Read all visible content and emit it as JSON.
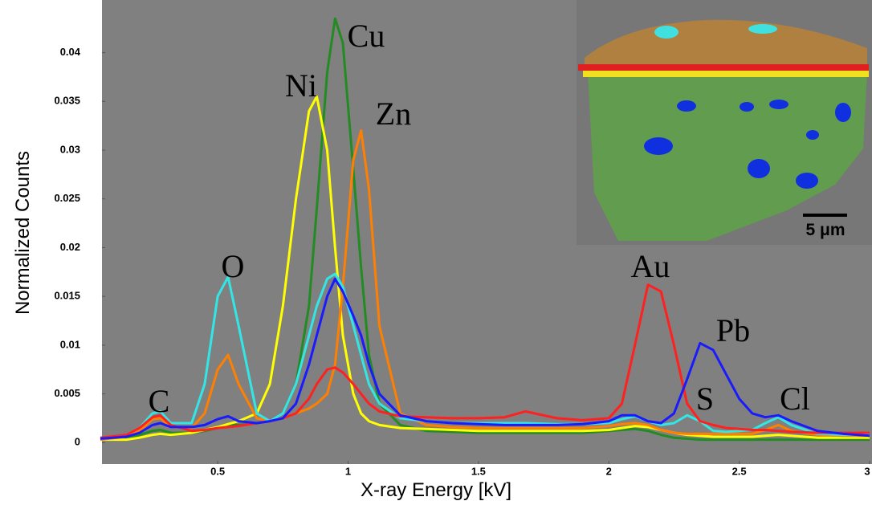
{
  "chart_data": {
    "type": "line",
    "xlabel": "X-ray Energy [kV]",
    "ylabel": "Normalized Counts",
    "x": [
      0.05,
      0.15,
      0.2,
      0.25,
      0.28,
      0.32,
      0.4,
      0.45,
      0.5,
      0.54,
      0.58,
      0.65,
      0.7,
      0.75,
      0.8,
      0.85,
      0.88,
      0.92,
      0.95,
      0.98,
      1.02,
      1.05,
      1.08,
      1.12,
      1.2,
      1.3,
      1.4,
      1.5,
      1.6,
      1.68,
      1.8,
      1.9,
      2.0,
      2.05,
      2.1,
      2.15,
      2.2,
      2.25,
      2.3,
      2.35,
      2.4,
      2.45,
      2.5,
      2.55,
      2.6,
      2.65,
      2.7,
      2.8,
      2.9,
      3.0
    ],
    "series": [
      {
        "color": "#228b22",
        "values": [
          0.0003,
          0.0005,
          0.0008,
          0.0012,
          0.0013,
          0.001,
          0.001,
          0.0012,
          0.0015,
          0.0018,
          0.0018,
          0.002,
          0.0022,
          0.003,
          0.006,
          0.014,
          0.024,
          0.038,
          0.0435,
          0.041,
          0.028,
          0.018,
          0.009,
          0.004,
          0.0018,
          0.0012,
          0.0011,
          0.001,
          0.001,
          0.001,
          0.001,
          0.001,
          0.0012,
          0.0013,
          0.0014,
          0.0012,
          0.0008,
          0.0005,
          0.0004,
          0.0003,
          0.0003,
          0.0003,
          0.0003,
          0.0003,
          0.0003,
          0.0003,
          0.0003,
          0.0003,
          0.0003,
          0.0003
        ]
      },
      {
        "color": "#ffff00",
        "values": [
          0.0003,
          0.0003,
          0.0005,
          0.0008,
          0.0009,
          0.0008,
          0.001,
          0.0013,
          0.0016,
          0.0019,
          0.0022,
          0.003,
          0.006,
          0.014,
          0.025,
          0.034,
          0.0355,
          0.03,
          0.02,
          0.011,
          0.005,
          0.003,
          0.0022,
          0.0018,
          0.0015,
          0.0014,
          0.0013,
          0.0012,
          0.0012,
          0.0012,
          0.0012,
          0.0012,
          0.0013,
          0.0015,
          0.0017,
          0.0016,
          0.0013,
          0.001,
          0.0008,
          0.0007,
          0.0006,
          0.0006,
          0.0006,
          0.0006,
          0.0007,
          0.0008,
          0.0007,
          0.0005,
          0.0005,
          0.0005
        ]
      },
      {
        "color": "#ff8000",
        "values": [
          0.0003,
          0.0006,
          0.0012,
          0.0024,
          0.0025,
          0.0016,
          0.0015,
          0.003,
          0.0075,
          0.009,
          0.006,
          0.0025,
          0.0022,
          0.0025,
          0.003,
          0.0035,
          0.004,
          0.005,
          0.008,
          0.016,
          0.029,
          0.032,
          0.026,
          0.012,
          0.003,
          0.0018,
          0.0016,
          0.0015,
          0.0015,
          0.0015,
          0.0015,
          0.0015,
          0.0017,
          0.0019,
          0.002,
          0.0018,
          0.0013,
          0.001,
          0.0009,
          0.0009,
          0.0009,
          0.0009,
          0.0009,
          0.0009,
          0.0013,
          0.0018,
          0.0012,
          0.0008,
          0.0007,
          0.0007
        ]
      },
      {
        "color": "#33e6e6",
        "values": [
          0.0004,
          0.0008,
          0.0015,
          0.003,
          0.0032,
          0.002,
          0.002,
          0.006,
          0.015,
          0.017,
          0.012,
          0.003,
          0.0022,
          0.003,
          0.006,
          0.011,
          0.014,
          0.0168,
          0.0173,
          0.016,
          0.012,
          0.009,
          0.006,
          0.004,
          0.0025,
          0.0022,
          0.002,
          0.002,
          0.002,
          0.002,
          0.0019,
          0.0019,
          0.002,
          0.0024,
          0.0027,
          0.0022,
          0.0018,
          0.002,
          0.0028,
          0.0022,
          0.0012,
          0.0011,
          0.0012,
          0.0013,
          0.002,
          0.0026,
          0.0018,
          0.0009,
          0.0008,
          0.0008
        ]
      },
      {
        "color": "#ff2020",
        "values": [
          0.0005,
          0.0008,
          0.0015,
          0.0026,
          0.0028,
          0.0018,
          0.0012,
          0.0013,
          0.0015,
          0.0016,
          0.0017,
          0.002,
          0.0022,
          0.0025,
          0.003,
          0.0045,
          0.006,
          0.0075,
          0.0077,
          0.0072,
          0.006,
          0.005,
          0.004,
          0.0032,
          0.0027,
          0.0026,
          0.0025,
          0.0025,
          0.0026,
          0.0032,
          0.0025,
          0.0023,
          0.0025,
          0.004,
          0.01,
          0.0162,
          0.0155,
          0.01,
          0.004,
          0.0022,
          0.0018,
          0.0015,
          0.0014,
          0.0013,
          0.0013,
          0.0012,
          0.0011,
          0.001,
          0.001,
          0.001
        ]
      },
      {
        "color": "#1a1aff",
        "values": [
          0.0004,
          0.0006,
          0.001,
          0.0018,
          0.002,
          0.0016,
          0.0016,
          0.0018,
          0.0024,
          0.0027,
          0.0022,
          0.002,
          0.0022,
          0.0025,
          0.004,
          0.008,
          0.011,
          0.015,
          0.0168,
          0.0155,
          0.013,
          0.011,
          0.008,
          0.005,
          0.0028,
          0.0022,
          0.002,
          0.0019,
          0.0018,
          0.0018,
          0.0018,
          0.0019,
          0.0022,
          0.0028,
          0.0028,
          0.0022,
          0.002,
          0.003,
          0.0065,
          0.0102,
          0.0095,
          0.007,
          0.0045,
          0.003,
          0.0026,
          0.0028,
          0.0022,
          0.0012,
          0.0009,
          0.0007
        ]
      }
    ],
    "xlim": [
      0.05,
      3
    ],
    "ylim": [
      -0.0022,
      0.0454
    ],
    "xticks": [
      0.5,
      1,
      1.5,
      2,
      2.5,
      3
    ],
    "yticks": [
      0,
      0.005,
      0.01,
      0.015,
      0.02,
      0.025,
      0.03,
      0.035,
      0.04
    ],
    "annotations": [
      "C",
      "O",
      "Ni",
      "Cu",
      "Zn",
      "Au",
      "S",
      "Pb",
      "Cl"
    ],
    "inset_scale": "5 μm"
  }
}
